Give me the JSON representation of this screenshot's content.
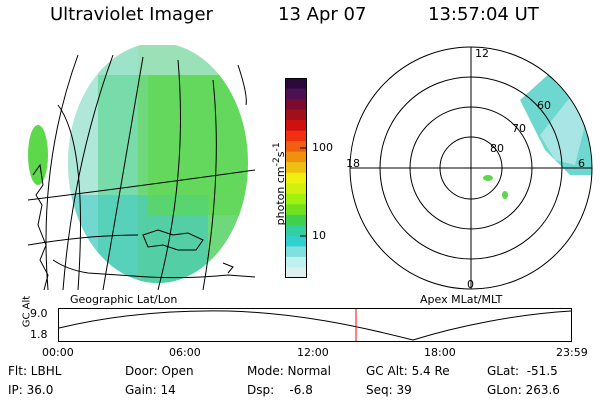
{
  "header": {
    "title": "Ultraviolet Imager",
    "date": "13 Apr 07",
    "time": "13:57:04 UT"
  },
  "geo_map": {
    "label": "Geographic Lat/Lon"
  },
  "colorbar": {
    "unit": "photon cm",
    "unit_sup1": "-2",
    "unit_mid": "s",
    "unit_sup2": "-1",
    "tick_high": "100",
    "tick_low": "10",
    "colors_top_to_bottom": [
      "#2a0a3a",
      "#4a1050",
      "#7a0a30",
      "#a0101a",
      "#d01010",
      "#f03010",
      "#f06010",
      "#f09010",
      "#f0c010",
      "#f0f010",
      "#d0f010",
      "#a0f010",
      "#70e020",
      "#40d050",
      "#30d0a0",
      "#30d0d0",
      "#80e0e0",
      "#c0f0f0",
      "#e0f0f0"
    ]
  },
  "polar": {
    "label": "Apex MLat/MLT",
    "mlt_top": "12",
    "mlt_left": "18",
    "mlt_right": "6",
    "mlt_bottom": "0",
    "lat_60": "60",
    "lat_70": "70",
    "lat_80": "80"
  },
  "altitude_plot": {
    "ylabel": "GC Alt",
    "ytick_top": "9.0",
    "ytick_bottom": "1.8",
    "xticks": [
      "00:00",
      "06:00",
      "12:00",
      "18:00",
      "23:59"
    ],
    "current_time_marker_color": "#ff0000"
  },
  "info": {
    "flt": "Flt: LBHL",
    "ip": "IP: 36.0",
    "door": "Door: Open",
    "gain": "Gain: 14",
    "mode": "Mode: Normal",
    "dsp": "Dsp:    -6.8",
    "gcalt": "GC Alt: 5.4 Re",
    "seq": "Seq: 39",
    "glat": "GLat:  -51.5",
    "glon": "GLon: 263.6"
  }
}
